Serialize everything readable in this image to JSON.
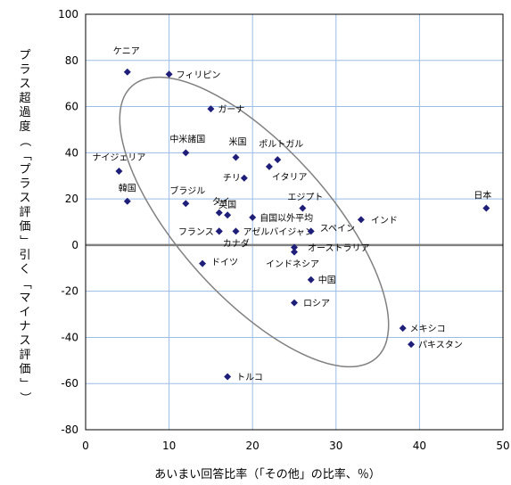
{
  "chart_data": {
    "type": "scatter",
    "xlabel": "あいまい回答比率（「その他」の比率、％）",
    "ylabel": "プラス超過度（「プラス評価」引く「マイナス評価」）",
    "xlim": [
      0,
      50
    ],
    "ylim": [
      -80,
      100
    ],
    "xticks": [
      "0",
      "10",
      "20",
      "30",
      "40",
      "50"
    ],
    "yticks": [
      "100",
      "80",
      "60",
      "40",
      "20",
      "0",
      "-20",
      "-40",
      "-60",
      "-80"
    ],
    "grid": true,
    "marker_color": "#1f1f7a",
    "grid_color": "#9bbde6",
    "zero_line_color": "#808080",
    "ellipse_color": "#808080",
    "points": [
      {
        "label": "ケニア",
        "x": 5,
        "y": 75
      },
      {
        "label": "フィリピン",
        "x": 10,
        "y": 74
      },
      {
        "label": "ガーナ",
        "x": 15,
        "y": 59
      },
      {
        "label": "中米諸国",
        "x": 12,
        "y": 40
      },
      {
        "label": "米国",
        "x": 18,
        "y": 38
      },
      {
        "label": "ポルトガル",
        "x": 23,
        "y": 37
      },
      {
        "label": "ナイジェリア",
        "x": 4,
        "y": 32
      },
      {
        "label": "イタリア",
        "x": 22,
        "y": 34
      },
      {
        "label": "チリ",
        "x": 19,
        "y": 29
      },
      {
        "label": "韓国",
        "x": 5,
        "y": 19
      },
      {
        "label": "ブラジル",
        "x": 12,
        "y": 18
      },
      {
        "label": "エジプト",
        "x": 26,
        "y": 16
      },
      {
        "label": "タイ",
        "x": 16,
        "y": 14
      },
      {
        "label": "英国",
        "x": 17,
        "y": 13
      },
      {
        "label": "自国以外平均",
        "x": 20,
        "y": 12
      },
      {
        "label": "インド",
        "x": 33,
        "y": 11
      },
      {
        "label": "日本",
        "x": 48,
        "y": 16
      },
      {
        "label": "フランス",
        "x": 16,
        "y": 6
      },
      {
        "label": "アゼルバイジャン",
        "x": 18,
        "y": 6
      },
      {
        "label": "スペイン",
        "x": 27,
        "y": 6
      },
      {
        "label": "カナダ",
        "x": 16,
        "y": 6
      },
      {
        "label": "オーストラリア",
        "x": 25,
        "y": -1
      },
      {
        "label": "インドネシア",
        "x": 25,
        "y": -3
      },
      {
        "label": "ドイツ",
        "x": 14,
        "y": -8
      },
      {
        "label": "中国",
        "x": 27,
        "y": -15
      },
      {
        "label": "ロシア",
        "x": 25,
        "y": -25
      },
      {
        "label": "メキシコ",
        "x": 38,
        "y": -36
      },
      {
        "label": "パキスタン",
        "x": 39,
        "y": -43
      },
      {
        "label": "トルコ",
        "x": 17,
        "y": -57
      }
    ]
  }
}
